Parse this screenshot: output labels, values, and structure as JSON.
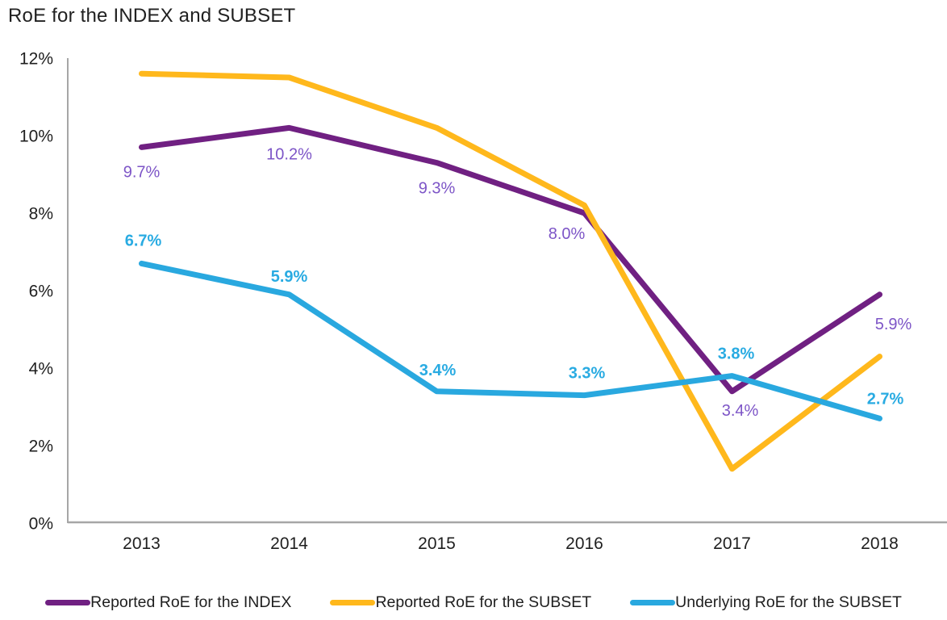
{
  "title": "RoE for the INDEX and SUBSET",
  "colors": {
    "axis_line": "#a6a6a6",
    "tick_text": "#1f1f1f",
    "title_text": "#212121",
    "index_purple": "#702082",
    "index_label_purple": "#7d55c7",
    "subset_reported_yellow": "#ffb81c",
    "subset_underlying_blue": "#29a8df",
    "subset_underlying_label_blue": "#29abe2"
  },
  "chart_data": {
    "type": "line",
    "title": "RoE for the INDEX and SUBSET",
    "xlabel": "",
    "ylabel": "",
    "x": [
      "2013",
      "2014",
      "2015",
      "2016",
      "2017",
      "2018"
    ],
    "ylim": [
      0,
      12
    ],
    "ytick_values": [
      0,
      2,
      4,
      6,
      8,
      10,
      12
    ],
    "ytick_labels": [
      "0%",
      "2%",
      "4%",
      "6%",
      "8%",
      "10%",
      "12%"
    ],
    "grid": false,
    "legend_position": "bottom",
    "series": [
      {
        "name": "Reported RoE for the INDEX",
        "color": "#702082",
        "values": [
          9.7,
          10.2,
          9.3,
          8.0,
          3.4,
          5.9
        ],
        "point_labels": [
          "9.7%",
          "10.2%",
          "9.3%",
          "8.0%",
          "3.4%",
          "5.9%"
        ],
        "label_color": "#7d55c7",
        "label_weight": "normal"
      },
      {
        "name": "Reported RoE for the SUBSET",
        "color": "#ffb81c",
        "values": [
          11.6,
          11.5,
          10.2,
          8.2,
          1.4,
          4.3
        ],
        "point_labels": null,
        "values_note": "unlabeled in chart, read from axis"
      },
      {
        "name": "Underlying RoE for the SUBSET",
        "color": "#29a8df",
        "values": [
          6.7,
          5.9,
          3.4,
          3.3,
          3.8,
          2.7
        ],
        "point_labels": [
          "6.7%",
          "5.9%",
          "3.4%",
          "3.3%",
          "3.8%",
          "2.7%"
        ],
        "label_color": "#29abe2",
        "label_weight": "bold"
      }
    ]
  },
  "legend": {
    "items": [
      {
        "label": "Reported RoE for the INDEX",
        "color": "#702082"
      },
      {
        "label": "Reported RoE for the SUBSET",
        "color": "#ffb81c"
      },
      {
        "label": "Underlying RoE for the SUBSET",
        "color": "#29a8df"
      }
    ]
  }
}
